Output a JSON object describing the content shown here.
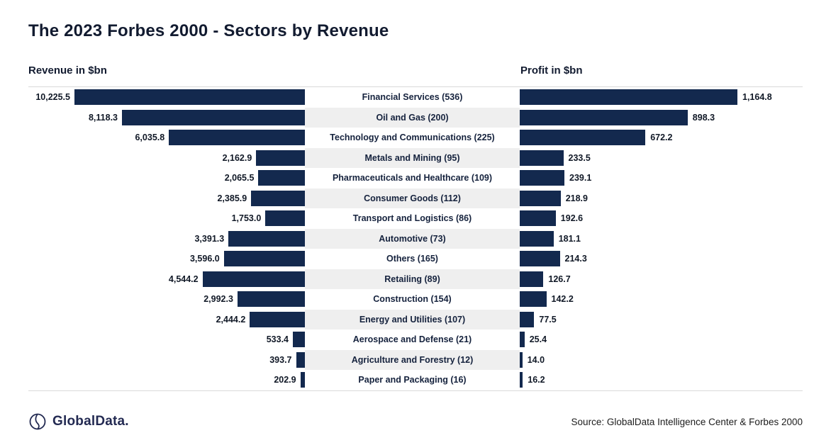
{
  "title": "The 2023 Forbes 2000 - Sectors by Revenue",
  "axes": {
    "left_label": "Revenue in $bn",
    "right_label": "Profit in $bn"
  },
  "colors": {
    "bar": "#13294e",
    "row_alt": "#efefef",
    "text": "#16233f"
  },
  "chart_data": {
    "type": "bar",
    "variant": "butterfly",
    "title": "The 2023 Forbes 2000 - Sectors by Revenue",
    "categories": [
      "Financial Services (536)",
      "Oil and Gas (200)",
      "Technology and Communications (225)",
      "Metals and Mining (95)",
      "Pharmaceuticals and Healthcare (109)",
      "Consumer Goods (112)",
      "Transport and Logistics (86)",
      "Automotive (73)",
      "Others (165)",
      "Retailing (89)",
      "Construction (154)",
      "Energy and Utilities (107)",
      "Aerospace and Defense (21)",
      "Agriculture and Forestry (12)",
      "Paper and Packaging (16)"
    ],
    "series": [
      {
        "name": "Revenue in $bn",
        "values": [
          10225.5,
          8118.3,
          6035.8,
          2162.9,
          2065.5,
          2385.9,
          1753.0,
          3391.3,
          3596.0,
          4544.2,
          2992.3,
          2444.2,
          533.4,
          393.7,
          202.9
        ]
      },
      {
        "name": "Profit in $bn",
        "values": [
          1164.8,
          898.3,
          672.2,
          233.5,
          239.1,
          218.9,
          192.6,
          181.1,
          214.3,
          126.7,
          142.2,
          77.5,
          25.4,
          14.0,
          16.2
        ]
      }
    ],
    "axis": {
      "revenue_max": 10225.5,
      "profit_max": 1164.8
    },
    "legend_position": "column-headers",
    "grid": false
  },
  "footer": {
    "logo_text": "GlobalData.",
    "logo_icon": "globaldata-logo-icon",
    "source": "Source: GlobalData Intelligence Center & Forbes 2000"
  }
}
